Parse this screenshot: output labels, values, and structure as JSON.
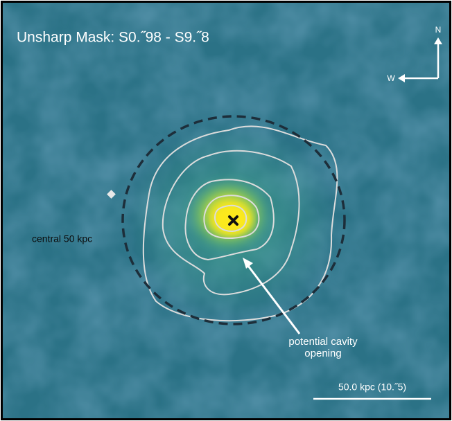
{
  "title": "Unsharp Mask: S0.˝98 - S9.˝8",
  "compass": {
    "north": "N",
    "west": "W"
  },
  "annotations": {
    "circle_label": "central 50 kpc",
    "cavity_label": [
      "potential cavity",
      "opening"
    ]
  },
  "scale_bar": "50.0 kpc (10.˝5)"
}
